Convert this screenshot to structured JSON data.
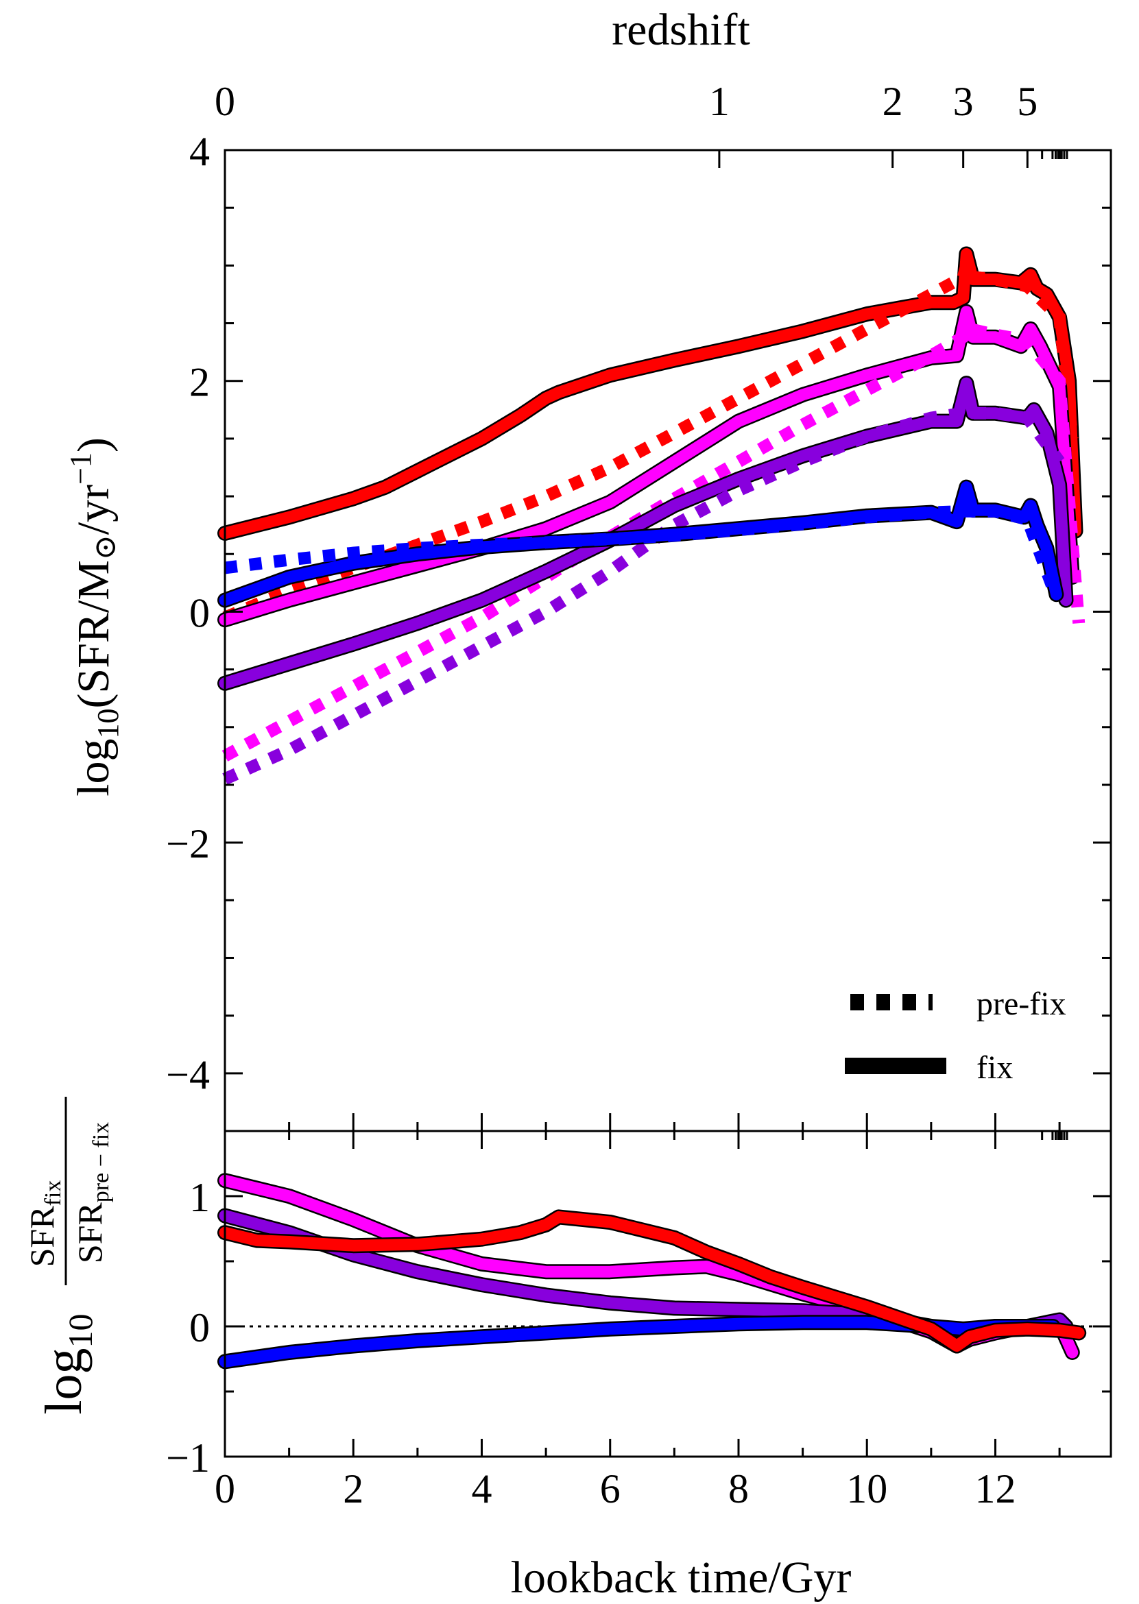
{
  "chart_data": [
    {
      "type": "line",
      "panel": "top",
      "title": "",
      "xlabel": "lookback time/Gyr",
      "ylabel_prefix": "log",
      "ylabel_sub": "10",
      "ylabel_body": "(SFR/M",
      "ylabel_sun": "⊙",
      "ylabel_tail": "/yr",
      "ylabel_sup": "−1",
      "ylabel_close": ")",
      "top_axis_label": "redshift",
      "top_ticks": [
        {
          "z": "0",
          "t": 0.0
        },
        {
          "z": "1",
          "t": 7.7
        },
        {
          "z": "2",
          "t": 10.4
        },
        {
          "z": "3",
          "t": 11.5
        },
        {
          "z": "5",
          "t": 12.5
        }
      ],
      "xlim": [
        0,
        13.8
      ],
      "ylim": [
        -4.5,
        4
      ],
      "yticks": [
        4,
        2,
        0,
        -2,
        -4
      ],
      "ytick_labels": [
        "4",
        "2",
        "0",
        "−2",
        "−4"
      ],
      "legend": {
        "position": "lower-right",
        "entries": [
          {
            "label": "pre-fix",
            "style": "dotted"
          },
          {
            "label": "fix",
            "style": "solid"
          }
        ]
      },
      "series": [
        {
          "name": "red fix",
          "color": "#ff0000",
          "style": "solid",
          "t": [
            0,
            1,
            2,
            2.5,
            3,
            4,
            4.6,
            5,
            5.2,
            6,
            7,
            8,
            9,
            10,
            10.5,
            11,
            11.35,
            11.5,
            11.55,
            11.65,
            12,
            12.4,
            12.55,
            12.65,
            12.8,
            13,
            13.15,
            13.25
          ],
          "y": [
            0.68,
            0.82,
            0.98,
            1.08,
            1.22,
            1.5,
            1.7,
            1.85,
            1.9,
            2.05,
            2.18,
            2.3,
            2.43,
            2.58,
            2.63,
            2.68,
            2.68,
            2.72,
            3.1,
            2.88,
            2.88,
            2.85,
            2.92,
            2.8,
            2.75,
            2.55,
            2.0,
            0.7
          ]
        },
        {
          "name": "red pre-fix",
          "color": "#ff0000",
          "style": "dotted",
          "t": [
            0,
            1,
            2,
            3,
            4,
            5,
            6,
            7,
            8,
            9,
            10,
            11,
            11.5,
            11.55,
            11.65,
            12,
            12.5,
            13,
            13.2
          ],
          "y": [
            -0.05,
            0.18,
            0.38,
            0.58,
            0.78,
            1.0,
            1.25,
            1.55,
            1.85,
            2.15,
            2.45,
            2.75,
            2.9,
            3.0,
            2.9,
            2.88,
            2.82,
            2.55,
            1.5
          ]
        },
        {
          "name": "magenta fix",
          "color": "#ff00ff",
          "style": "solid",
          "t": [
            0,
            1,
            2,
            3,
            4,
            5,
            6,
            7,
            8,
            9,
            10,
            11,
            11.4,
            11.55,
            11.65,
            12,
            12.4,
            12.55,
            12.7,
            13,
            13.2
          ],
          "y": [
            -0.07,
            0.1,
            0.25,
            0.4,
            0.55,
            0.72,
            0.95,
            1.3,
            1.65,
            1.88,
            2.05,
            2.2,
            2.22,
            2.6,
            2.38,
            2.38,
            2.3,
            2.45,
            2.3,
            1.95,
            0.3
          ]
        },
        {
          "name": "magenta pre-fix",
          "color": "#ff00ff",
          "style": "dotted",
          "t": [
            0,
            1,
            2,
            3,
            4,
            5,
            6,
            7,
            8,
            9,
            10,
            11,
            11.5,
            11.6,
            12,
            12.5,
            13,
            13.3
          ],
          "y": [
            -1.25,
            -0.95,
            -0.65,
            -0.35,
            -0.05,
            0.3,
            0.65,
            0.98,
            1.3,
            1.62,
            1.92,
            2.22,
            2.38,
            2.45,
            2.4,
            2.35,
            2.0,
            -0.1
          ]
        },
        {
          "name": "purple fix",
          "color": "#8800dd",
          "style": "solid",
          "t": [
            0,
            1,
            2,
            3,
            4,
            5,
            6,
            7,
            8,
            9,
            10,
            11,
            11.4,
            11.55,
            11.65,
            12,
            12.5,
            12.6,
            12.8,
            13,
            13.1
          ],
          "y": [
            -0.62,
            -0.45,
            -0.28,
            -0.1,
            0.1,
            0.35,
            0.62,
            0.92,
            1.15,
            1.35,
            1.52,
            1.65,
            1.65,
            1.98,
            1.72,
            1.72,
            1.68,
            1.75,
            1.55,
            1.1,
            0.1
          ]
        },
        {
          "name": "purple pre-fix",
          "color": "#8800dd",
          "style": "dotted",
          "t": [
            0,
            1,
            2,
            3,
            4,
            5,
            6,
            7,
            8,
            9,
            10,
            11,
            11.5,
            12,
            12.5,
            13
          ],
          "y": [
            -1.45,
            -1.2,
            -0.9,
            -0.6,
            -0.3,
            0.0,
            0.35,
            0.75,
            1.05,
            1.3,
            1.52,
            1.68,
            1.72,
            1.72,
            1.68,
            1.3
          ]
        },
        {
          "name": "blue fix",
          "color": "#0000ff",
          "style": "solid",
          "t": [
            0,
            1,
            2,
            3,
            4,
            5,
            6,
            7,
            8,
            9,
            10,
            11,
            11.4,
            11.55,
            11.65,
            12,
            12.45,
            12.55,
            12.65,
            12.8,
            12.95
          ],
          "y": [
            0.1,
            0.3,
            0.42,
            0.5,
            0.56,
            0.6,
            0.63,
            0.67,
            0.72,
            0.77,
            0.83,
            0.86,
            0.78,
            1.08,
            0.88,
            0.88,
            0.82,
            0.92,
            0.75,
            0.55,
            0.15
          ]
        },
        {
          "name": "blue pre-fix",
          "color": "#0000ff",
          "style": "dotted",
          "t": [
            0,
            1,
            2,
            3,
            4,
            5,
            6,
            7,
            8,
            9,
            10,
            11,
            11.5,
            12,
            12.5,
            12.9
          ],
          "y": [
            0.38,
            0.45,
            0.51,
            0.55,
            0.58,
            0.6,
            0.63,
            0.66,
            0.71,
            0.76,
            0.82,
            0.86,
            0.87,
            0.87,
            0.8,
            0.2
          ]
        }
      ]
    },
    {
      "type": "line",
      "panel": "bottom",
      "xlabel": "lookback time/Gyr",
      "ylabel_prefix": "log",
      "ylabel_sub": "10",
      "ylabel_num": "SFR",
      "ylabel_num_sub": "fix",
      "ylabel_den": "SFR",
      "ylabel_den_sub": "pre − fix",
      "xlim": [
        0,
        13.8
      ],
      "ylim": [
        -1,
        1.5
      ],
      "xticks": [
        0,
        2,
        4,
        6,
        8,
        10,
        12
      ],
      "xtick_labels": [
        "0",
        "2",
        "4",
        "6",
        "8",
        "10",
        "12"
      ],
      "yticks": [
        1,
        0,
        -1
      ],
      "ytick_labels": [
        "1",
        "0",
        "−1"
      ],
      "reference_line": {
        "y": 0,
        "style": "dotted"
      },
      "series": [
        {
          "name": "magenta ratio",
          "color": "#ff00ff",
          "t": [
            0,
            1,
            2,
            3,
            4,
            5,
            6,
            7,
            7.5,
            8,
            9,
            10,
            11,
            11.4,
            11.6,
            12,
            12.5,
            13,
            13.2
          ],
          "y": [
            1.12,
            1.0,
            0.82,
            0.62,
            0.48,
            0.42,
            0.42,
            0.45,
            0.46,
            0.4,
            0.25,
            0.12,
            -0.04,
            -0.15,
            -0.1,
            -0.05,
            0.0,
            0.02,
            -0.2
          ]
        },
        {
          "name": "purple ratio",
          "color": "#8800dd",
          "t": [
            0,
            1,
            2,
            3,
            4,
            5,
            6,
            7,
            8,
            9,
            10,
            11,
            11.4,
            11.6,
            12,
            12.5,
            13,
            13.1
          ],
          "y": [
            0.85,
            0.72,
            0.55,
            0.42,
            0.32,
            0.24,
            0.18,
            0.14,
            0.13,
            0.12,
            0.09,
            0.0,
            -0.15,
            -0.05,
            0.0,
            0.0,
            0.05,
            0.0
          ]
        },
        {
          "name": "blue ratio",
          "color": "#0000ff",
          "t": [
            0,
            1,
            2,
            3,
            4,
            5,
            6,
            7,
            8,
            9,
            10,
            11,
            11.5,
            12,
            12.5,
            12.9
          ],
          "y": [
            -0.27,
            -0.2,
            -0.15,
            -0.11,
            -0.08,
            -0.05,
            -0.02,
            0.0,
            0.02,
            0.03,
            0.03,
            0.0,
            -0.02,
            0.0,
            0.0,
            0.0
          ]
        },
        {
          "name": "red ratio",
          "color": "#ff0000",
          "t": [
            0,
            0.5,
            1,
            2,
            3,
            4,
            4.6,
            5,
            5.2,
            6,
            6.5,
            7,
            7.5,
            8,
            8.5,
            9,
            10,
            11,
            11.4,
            11.6,
            12,
            12.5,
            13,
            13.3
          ],
          "y": [
            0.72,
            0.66,
            0.65,
            0.62,
            0.63,
            0.67,
            0.72,
            0.78,
            0.84,
            0.8,
            0.74,
            0.68,
            0.57,
            0.48,
            0.38,
            0.3,
            0.15,
            -0.02,
            -0.15,
            -0.08,
            -0.03,
            -0.02,
            -0.03,
            -0.05
          ]
        }
      ]
    }
  ]
}
